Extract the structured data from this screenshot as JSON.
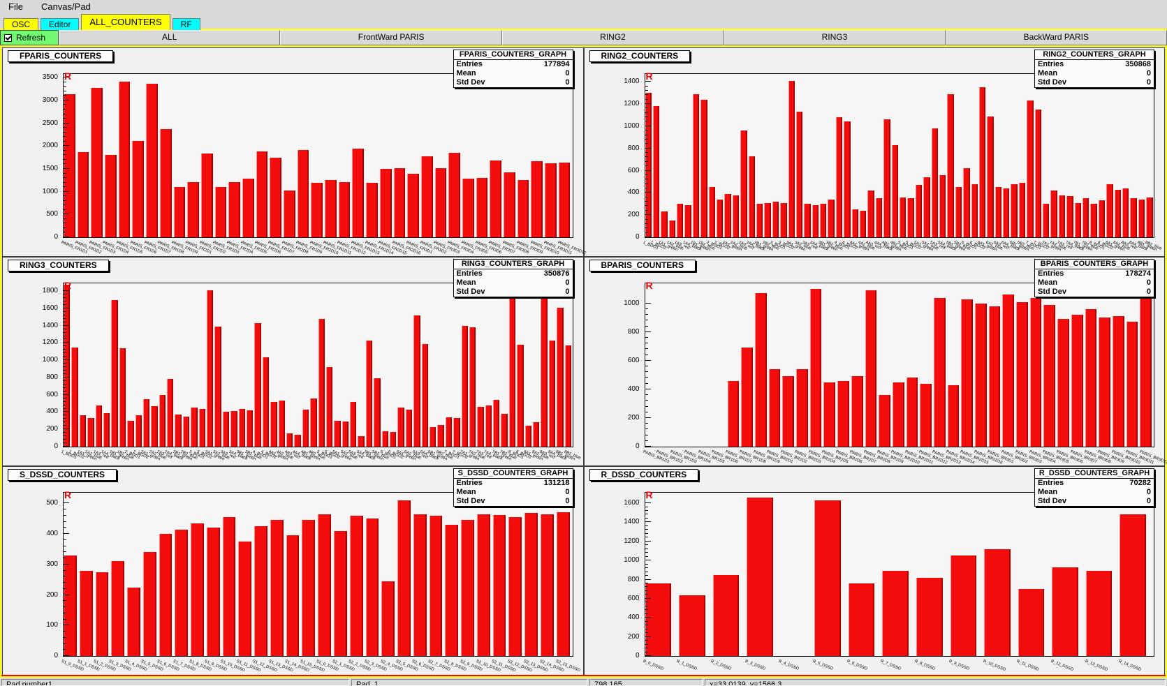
{
  "menu": {
    "items": [
      "File",
      "Canvas/Pad"
    ]
  },
  "tabs": [
    {
      "label": "OSC",
      "color": "#ffff00",
      "selected": false
    },
    {
      "label": "Editor",
      "color": "#00ffff",
      "selected": false
    },
    {
      "label": "ALL_COUNTERS",
      "color": "#ffff00",
      "selected": true
    },
    {
      "label": "RF",
      "color": "#00ffff",
      "selected": false
    }
  ],
  "toolbar": {
    "refresh_label": "Refresh",
    "refresh_checked": true,
    "buttons": [
      "ALL",
      "FrontWard PARIS",
      "RING2",
      "RING3",
      "BackWard PARIS"
    ]
  },
  "statusbar": {
    "fields": [
      "Pad number1",
      "Pad_1",
      "798.165",
      "x=33.0139, y=1566.3"
    ]
  },
  "stats_labels": {
    "entries": "Entries",
    "mean": "Mean",
    "std_dev": "Std Dev"
  },
  "colors": {
    "bar_red": "#f20c0c",
    "tab_yellow": "#ffff00",
    "tab_cyan": "#00ffff",
    "refresh_green": "#72f872",
    "canvas_highlight": "#ffff00",
    "pad_highlight": "#ff0000",
    "marker_red": "#ee0000"
  },
  "chart_data": [
    {
      "type": "bar",
      "title": "FPARIS_COUNTERS",
      "marker": "R",
      "stats": {
        "title": "FPARIS_COUNTERS_GRAPH",
        "entries": "177894",
        "mean": "0",
        "std_dev": "0"
      },
      "ylim": [
        0,
        3500
      ],
      "ytick_step": 500,
      "scale_max": 3580,
      "grid": false,
      "categories": [
        "PARIS_FR1D1",
        "PARIS_FR1D2",
        "PARIS_FR1D3",
        "PARIS_FR1D4",
        "PARIS_FR1D5",
        "PARIS_FR1D6",
        "PARIS_FR1D7",
        "PARIS_FR1D8",
        "PARIS_FR1D9",
        "PARIS_FR2D1",
        "PARIS_FR2D2",
        "PARIS_FR2D3",
        "PARIS_FR2D4",
        "PARIS_FR2D5",
        "PARIS_FR2D6",
        "PARIS_FR2D7",
        "PARIS_FR2D8",
        "PARIS_FR2D9",
        "PARIS_FR2D10",
        "PARIS_FR2D11",
        "PARIS_FR2D12",
        "PARIS_FR2D13",
        "PARIS_FR2D14",
        "PARIS_FR2D15",
        "PARIS_FR2D16",
        "PARIS_FR3D1",
        "PARIS_FR3D2",
        "PARIS_FR3D3",
        "PARIS_FR3D4",
        "PARIS_FR3D5",
        "PARIS_FR3D6",
        "PARIS_FR3D7",
        "PARIS_FR3D8",
        "PARIS_FR3D9",
        "PARIS_FR3D10",
        "PARIS_FR3D11",
        "PARIS_FR3D12"
      ],
      "values": [
        3130,
        1870,
        3270,
        1810,
        3410,
        2110,
        3360,
        2370,
        1100,
        1210,
        1840,
        1100,
        1210,
        1290,
        1880,
        1740,
        1020,
        1920,
        1190,
        1250,
        1210,
        1950,
        1190,
        1500,
        1520,
        1400,
        1780,
        1510,
        1850,
        1290,
        1300,
        1680,
        1430,
        1250,
        1670,
        1620,
        1640
      ]
    },
    {
      "type": "bar",
      "title": "RING2_COUNTERS",
      "marker": "R",
      "stats": {
        "title": "RING2_COUNTERS_GRAPH",
        "entries": "350868",
        "mean": "0",
        "std_dev": "0"
      },
      "ylim": [
        0,
        1400
      ],
      "ytick_step": 200,
      "scale_max": 1470,
      "grid": false,
      "categories": [
        "1_BGO1",
        "1_BGO2",
        "1A1_green",
        "1A2_blue",
        "1A3_red",
        "1A4_black",
        "1B1_green",
        "1B2_blue",
        "2_BGO1",
        "2_BGO2",
        "2A1_green",
        "2A2_blue",
        "2A3_red",
        "2A4_black",
        "2B1_green",
        "2B2_blue",
        "3_BGO1",
        "3_BGO2",
        "3A1_green",
        "3A2_blue",
        "3A3_red",
        "3A4_black",
        "3B1_green",
        "3B2_blue",
        "4_BGO1",
        "4_BGO2",
        "4A1_green",
        "4A2_blue",
        "4A3_red",
        "4A4_black",
        "4B1_green",
        "4B2_blue",
        "5_BGO1",
        "5_BGO2",
        "5A1_green",
        "5A2_blue",
        "5A3_red",
        "5A4_black",
        "5B1_green",
        "5B2_blue",
        "6_BGO1",
        "6_BGO2",
        "6A1_green",
        "6A2_blue",
        "6A3_red",
        "6A4_black",
        "6B1_green",
        "6B2_blue",
        "7_BGO1",
        "7_BGO2",
        "7A1_green",
        "7A2_blue",
        "7A3_red",
        "7A4_black",
        "7B1_green",
        "7B2_blue",
        "8_BGO1",
        "8_BGO2",
        "8A1_green",
        "8A2_blue",
        "8A3_red",
        "8A4_black",
        "8B1_green",
        "8B2_blue"
      ],
      "values": [
        1300,
        1180,
        230,
        150,
        300,
        290,
        1290,
        1240,
        450,
        340,
        390,
        380,
        960,
        730,
        300,
        310,
        320,
        310,
        1410,
        1130,
        300,
        290,
        300,
        340,
        1080,
        1040,
        250,
        240,
        420,
        350,
        1060,
        830,
        360,
        350,
        470,
        540,
        980,
        560,
        1290,
        450,
        620,
        480,
        1350,
        1090,
        450,
        440,
        480,
        490,
        1230,
        1150,
        300,
        420,
        380,
        370,
        310,
        350,
        300,
        330,
        480,
        430,
        440,
        350,
        340,
        360
      ]
    },
    {
      "type": "bar",
      "title": "RING3_COUNTERS",
      "marker": "R",
      "stats": {
        "title": "RING3_COUNTERS_GRAPH",
        "entries": "350876",
        "mean": "0",
        "std_dev": "0"
      },
      "ylim": [
        0,
        1800
      ],
      "ytick_step": 200,
      "scale_max": 1890,
      "grid": false,
      "categories": [
        "1_BGO1",
        "1_BGO2",
        "1A1_green",
        "1A2_blue",
        "1A3_red",
        "1A4_black",
        "1B1_green",
        "1B2_blue",
        "2_BGO1",
        "2_BGO2",
        "2A1_green",
        "2A2_blue",
        "2A3_red",
        "2A4_black",
        "2B1_green",
        "2B2_blue",
        "3_BGO1",
        "3_BGO2",
        "3A1_green",
        "3A2_blue",
        "3A3_red",
        "3A4_black",
        "3B1_green",
        "3B2_blue",
        "4_BGO1",
        "4_BGO2",
        "4A1_green",
        "4A2_blue",
        "4A3_red",
        "4A4_black",
        "4B1_green",
        "4B2_blue",
        "5_BGO1",
        "5_BGO2",
        "5A1_green",
        "5A2_blue",
        "5A3_red",
        "5A4_black",
        "5B1_green",
        "5B2_blue",
        "6_BGO1",
        "6_BGO2",
        "6A1_green",
        "6A2_blue",
        "6A3_red",
        "6A4_black",
        "6B1_green",
        "6B2_blue",
        "7_BGO1",
        "7_BGO2",
        "7A1_green",
        "7A2_blue",
        "7A3_red",
        "7A4_black",
        "7B1_green",
        "7B2_blue",
        "8_BGO1",
        "8_BGO2",
        "8A1_green",
        "8A2_blue",
        "8A3_red",
        "8A4_black",
        "8B1_green",
        "8B2_blue"
      ],
      "values": [
        1870,
        1150,
        360,
        330,
        480,
        390,
        1700,
        1140,
        300,
        360,
        550,
        470,
        600,
        780,
        370,
        350,
        450,
        440,
        1810,
        1390,
        400,
        410,
        440,
        420,
        1430,
        1030,
        520,
        530,
        150,
        140,
        430,
        560,
        1480,
        920,
        300,
        290,
        520,
        120,
        1230,
        790,
        180,
        170,
        450,
        430,
        1520,
        1190,
        230,
        250,
        340,
        330,
        1400,
        1380,
        460,
        480,
        540,
        380,
        1780,
        1180,
        240,
        280,
        1750,
        1230,
        1610,
        1170
      ]
    },
    {
      "type": "bar",
      "title": "BPARIS_COUNTERS",
      "marker": "R",
      "stats": {
        "title": "BPARIS_COUNTERS_GRAPH",
        "entries": "178274",
        "mean": "0",
        "std_dev": "0"
      },
      "ylim": [
        0,
        1000
      ],
      "ytick_step": 200,
      "scale_max": 1140,
      "grid": false,
      "categories": [
        "PARIS_BR1D1",
        "PARIS_BR1D2",
        "PARIS_BR1D3",
        "PARIS_BR1D4",
        "PARIS_BR1D5",
        "PARIS_BR1D6",
        "PARIS_BR1D7",
        "PARIS_BR1D8",
        "PARIS_BR1D9",
        "PARIS_BR2D1",
        "PARIS_BR2D2",
        "PARIS_BR2D3",
        "PARIS_BR2D4",
        "PARIS_BR2D5",
        "PARIS_BR2D6",
        "PARIS_BR2D7",
        "PARIS_BR2D8",
        "PARIS_BR2D9",
        "PARIS_BR2D10",
        "PARIS_BR2D11",
        "PARIS_BR2D12",
        "PARIS_BR2D13",
        "PARIS_BR2D14",
        "PARIS_BR2D15",
        "PARIS_BR2D16",
        "PARIS_BR3D1",
        "PARIS_BR3D2",
        "PARIS_BR3D3",
        "PARIS_BR3D4",
        "PARIS_BR3D5",
        "PARIS_BR3D6",
        "PARIS_BR3D7",
        "PARIS_BR3D8",
        "PARIS_BR3D9",
        "PARIS_BR3D10",
        "PARIS_BR3D11",
        "PARIS_BR3D12"
      ],
      "values": [
        0,
        0,
        0,
        0,
        0,
        0,
        460,
        690,
        1070,
        540,
        490,
        540,
        1100,
        450,
        460,
        490,
        1090,
        360,
        450,
        480,
        440,
        1040,
        430,
        1030,
        1000,
        980,
        1060,
        1010,
        1040,
        990,
        890,
        920,
        960,
        900,
        910,
        870,
        1080
      ]
    },
    {
      "type": "bar",
      "title": "S_DSSD_COUNTERS",
      "marker": "R",
      "stats": {
        "title": "S_DSSD_COUNTERS_GRAPH",
        "entries": "131218",
        "mean": "0",
        "std_dev": "0"
      },
      "ylim": [
        0,
        500
      ],
      "ytick_step": 100,
      "scale_max": 535,
      "grid": false,
      "categories": [
        "S1_0_DSSD",
        "S1_1_DSSD",
        "S1_2_DSSD",
        "S1_3_DSSD",
        "S1_4_DSSD",
        "S1_5_DSSD",
        "S1_6_DSSD",
        "S1_7_DSSD",
        "S1_8_DSSD",
        "S1_9_DSSD",
        "S1_10_DSSD",
        "S1_11_DSSD",
        "S1_12_DSSD",
        "S1_13_DSSD",
        "S1_14_DSSD",
        "S1_15_DSSD",
        "S2_0_DSSD",
        "S2_1_DSSD",
        "S2_2_DSSD",
        "S2_3_DSSD",
        "S2_4_DSSD",
        "S2_5_DSSD",
        "S2_6_DSSD",
        "S2_7_DSSD",
        "S2_8_DSSD",
        "S2_9_DSSD",
        "S2_10_DSSD",
        "S2_11_DSSD",
        "S2_12_DSSD",
        "S2_13_DSSD",
        "S2_14_DSSD",
        "S2_15_DSSD"
      ],
      "values": [
        330,
        280,
        275,
        310,
        225,
        340,
        400,
        415,
        435,
        420,
        455,
        375,
        425,
        445,
        395,
        445,
        465,
        410,
        460,
        450,
        245,
        510,
        465,
        460,
        430,
        445,
        465,
        462,
        455,
        468,
        465,
        470
      ]
    },
    {
      "type": "bar",
      "title": "R_DSSD_COUNTERS",
      "marker": "R",
      "stats": {
        "title": "R_DSSD_COUNTERS_GRAPH",
        "entries": "70282",
        "mean": "0",
        "std_dev": "0"
      },
      "ylim": [
        0,
        1600
      ],
      "ytick_step": 200,
      "scale_max": 1710,
      "grid": false,
      "categories": [
        "R_0_DSSD",
        "R_1_DSSD",
        "R_2_DSSD",
        "R_3_DSSD",
        "R_4_DSSD",
        "R_5_DSSD",
        "R_6_DSSD",
        "R_7_DSSD",
        "R_8_DSSD",
        "R_9_DSSD",
        "R_10_DSSD",
        "R_11_DSSD",
        "R_12_DSSD",
        "R_13_DSSD",
        "R_14_DSSD"
      ],
      "values": [
        760,
        635,
        850,
        1660,
        0,
        1630,
        760,
        890,
        820,
        1050,
        1120,
        700,
        930,
        890,
        1480
      ]
    }
  ]
}
